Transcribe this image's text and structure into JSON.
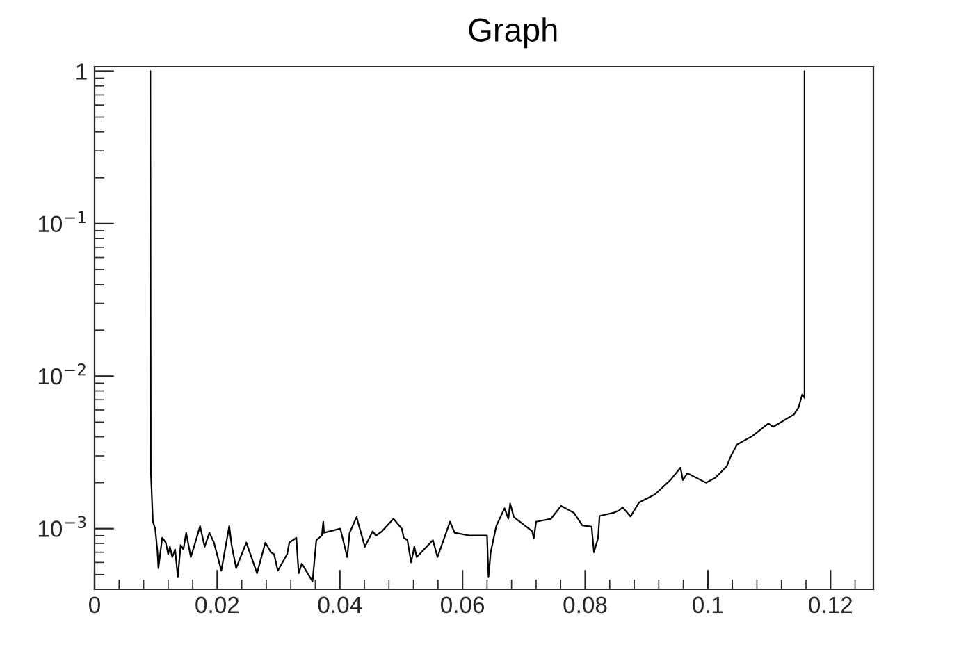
{
  "chart_data": {
    "type": "line",
    "title": "Graph",
    "log": "y",
    "grid": false,
    "marker": "none",
    "line_style": "solid",
    "xlim": [
      0,
      0.127
    ],
    "ylim": [
      0.0004,
      1.07
    ],
    "xticks": [
      0,
      0.02,
      0.04,
      0.06,
      0.08,
      0.1,
      0.12
    ],
    "yticks": [
      {
        "value": 0.001,
        "label": "10$^{−3}$"
      },
      {
        "value": 0.01,
        "label": "10$^{−2}$"
      },
      {
        "value": 0.1,
        "label": "10$^{−1}$"
      },
      1
    ],
    "series": [
      {
        "color": "#000000",
        "x": [
          0.0091,
          0.00917,
          0.00951,
          0.00989,
          0.01026,
          0.01041,
          0.01103,
          0.01161,
          0.012,
          0.01229,
          0.01268,
          0.01313,
          0.01358,
          0.01404,
          0.01449,
          0.01494,
          0.01569,
          0.0163,
          0.0172,
          0.01795,
          0.01872,
          0.01947,
          0.02067,
          0.02196,
          0.02235,
          0.02309,
          0.02475,
          0.02649,
          0.02785,
          0.02875,
          0.02927,
          0.02988,
          0.0314,
          0.03176,
          0.0329,
          0.03328,
          0.0338,
          0.03554,
          0.03616,
          0.03706,
          0.03729,
          0.03742,
          0.04007,
          0.0412,
          0.04159,
          0.04272,
          0.04408,
          0.04535,
          0.04589,
          0.04686,
          0.04874,
          0.0501,
          0.05042,
          0.05101,
          0.05162,
          0.05214,
          0.05252,
          0.05517,
          0.05592,
          0.05796,
          0.05871,
          0.0612,
          0.064,
          0.06423,
          0.06459,
          0.0655,
          0.06685,
          0.06747,
          0.06776,
          0.06837,
          0.07138,
          0.07161,
          0.072,
          0.07442,
          0.07607,
          0.07817,
          0.07953,
          0.08105,
          0.08143,
          0.08211,
          0.08234,
          0.08461,
          0.08558,
          0.0861,
          0.08739,
          0.08875,
          0.09026,
          0.0914,
          0.09389,
          0.09554,
          0.09593,
          0.09667,
          0.09968,
          0.1012,
          0.10233,
          0.10308,
          0.10369,
          0.10475,
          0.10724,
          0.10987,
          0.11064,
          0.11404,
          0.11479,
          0.1154,
          0.11576,
          0.11576
        ],
        "values": [
          1,
          0.0024,
          0.00111,
          0.001,
          0.0007,
          0.00055,
          0.00087,
          0.00081,
          0.00068,
          0.00076,
          0.00065,
          0.00073,
          0.00048,
          0.00078,
          0.00073,
          0.00094,
          0.00065,
          0.00078,
          0.00104,
          0.00076,
          0.00094,
          0.00081,
          0.00053,
          0.00104,
          0.00078,
          0.00055,
          0.00081,
          0.00051,
          0.00081,
          0.0007,
          0.00068,
          0.00053,
          0.00068,
          0.00081,
          0.00087,
          0.00051,
          0.00059,
          0.00045,
          0.00084,
          0.0009,
          0.00111,
          0.00094,
          0.001,
          0.00065,
          0.00094,
          0.00119,
          0.00076,
          0.00096,
          0.0009,
          0.00096,
          0.00116,
          0.001,
          0.00087,
          0.00084,
          0.0006,
          0.00076,
          0.00065,
          0.00084,
          0.00065,
          0.00111,
          0.00094,
          0.0009,
          0.0009,
          0.00048,
          0.0007,
          0.00104,
          0.00136,
          0.00116,
          0.00146,
          0.00119,
          0.00096,
          0.00086,
          0.00111,
          0.00116,
          0.00141,
          0.00127,
          0.00105,
          0.00103,
          0.0007,
          0.00087,
          0.00121,
          0.00127,
          0.00132,
          0.00138,
          0.0012,
          0.00148,
          0.00159,
          0.00168,
          0.00208,
          0.00251,
          0.00208,
          0.00231,
          0.002,
          0.00215,
          0.00239,
          0.00256,
          0.00295,
          0.00356,
          0.00404,
          0.00489,
          0.00465,
          0.00561,
          0.00623,
          0.00759,
          0.0072,
          1
        ]
      }
    ]
  }
}
